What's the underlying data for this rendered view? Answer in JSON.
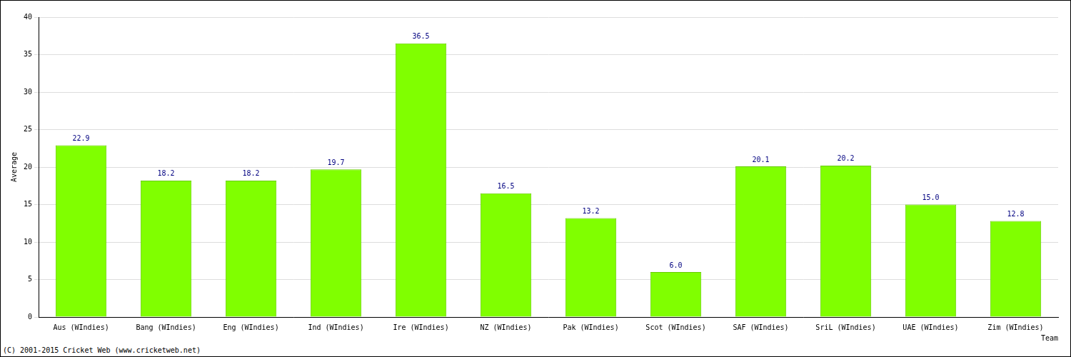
{
  "chart_data": {
    "type": "bar",
    "y_label": "Average",
    "x_label": "Team",
    "annotations": [
      "(C) 2001-2015 Cricket Web (www.cricketweb.net)"
    ],
    "categories": [
      "Aus (WIndies)",
      "Bang (WIndies)",
      "Eng (WIndies)",
      "Ind (WIndies)",
      "Ire (WIndies)",
      "NZ (WIndies)",
      "Pak (WIndies)",
      "Scot (WIndies)",
      "SAF (WIndies)",
      "SriL (WIndies)",
      "UAE (WIndies)",
      "Zim (WIndies)"
    ],
    "values": [
      22.9,
      18.2,
      18.2,
      19.7,
      36.5,
      16.5,
      13.2,
      6.0,
      20.1,
      20.2,
      15.0,
      12.8
    ],
    "value_labels": [
      "22.9",
      "18.2",
      "18.2",
      "19.7",
      "36.5",
      "16.5",
      "13.2",
      "6.0",
      "20.1",
      "20.2",
      "15.0",
      "12.8"
    ],
    "data_labels": true,
    "color": "#80ff00",
    "ylim": [
      0,
      40
    ],
    "yticks": [
      0,
      5,
      10,
      15,
      20,
      25,
      30,
      35,
      40
    ],
    "grid": true
  }
}
